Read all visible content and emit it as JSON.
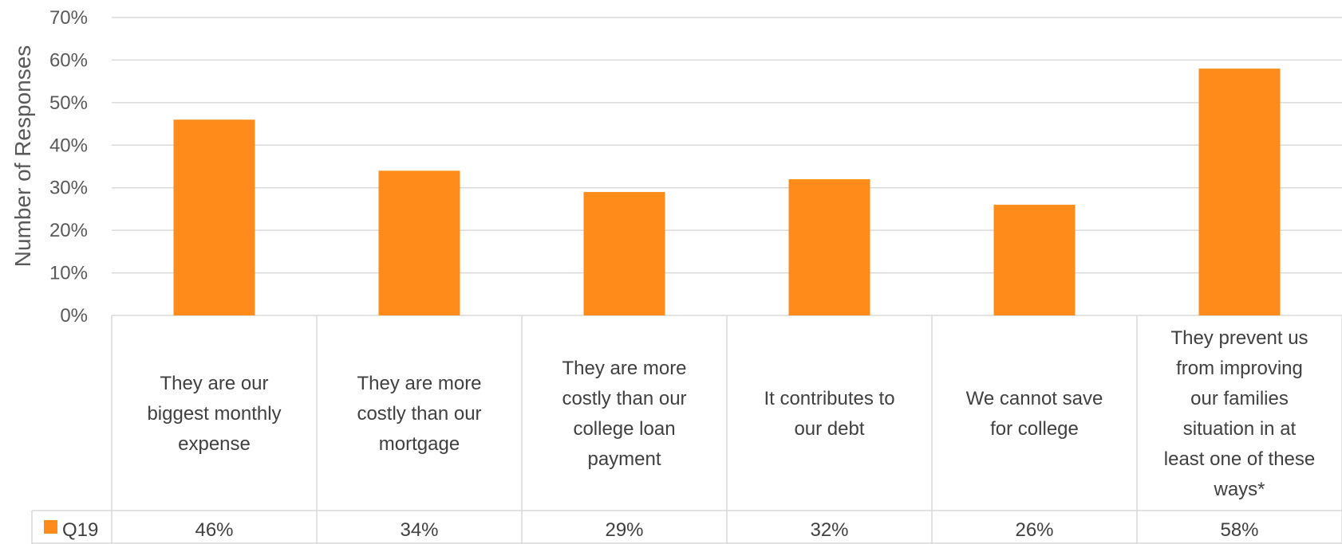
{
  "chart_data": {
    "type": "bar",
    "ylabel": "Number of Responses",
    "ylim": [
      0,
      70
    ],
    "yticks": [
      0,
      10,
      20,
      30,
      40,
      50,
      60,
      70
    ],
    "ytick_labels": [
      "0%",
      "10%",
      "20%",
      "30%",
      "40%",
      "50%",
      "60%",
      "70%"
    ],
    "y_unit": "%",
    "grid": true,
    "legend_placement": "data-table-left",
    "categories": [
      "They are our biggest monthly expense",
      "They are more costly than our mortgage",
      "They are more costly than our college loan payment",
      "It contributes to our debt",
      "We cannot save for college",
      "They prevent us from improving our families situation in at least one of these ways*"
    ],
    "category_lines": [
      [
        "They are our",
        "biggest monthly",
        "expense"
      ],
      [
        "They are more",
        "costly than our",
        "mortgage"
      ],
      [
        "They are more",
        "costly than our",
        "college loan",
        "payment"
      ],
      [
        "It contributes to",
        "our debt"
      ],
      [
        "We cannot save",
        "for college"
      ],
      [
        "They prevent us",
        "from improving",
        "our families",
        "situation in at",
        "least one of these",
        "ways*"
      ]
    ],
    "series": [
      {
        "name": "Q19",
        "color": "#FF8C1A",
        "values": [
          46,
          34,
          29,
          32,
          26,
          58
        ],
        "value_labels": [
          "46%",
          "34%",
          "29%",
          "32%",
          "26%",
          "58%"
        ]
      }
    ]
  },
  "colors": {
    "bar": "#FF8C1A",
    "grid": "#d9d9d9",
    "text": "#595959"
  }
}
